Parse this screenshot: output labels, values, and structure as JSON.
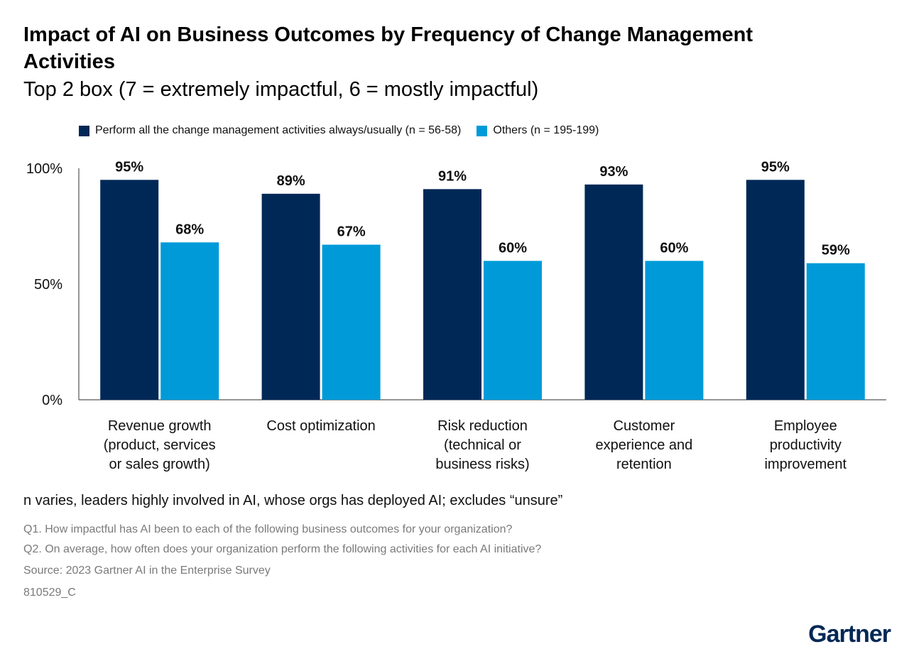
{
  "title": "Impact of AI on Business Outcomes by Frequency of Change Management Activities",
  "subtitle": "Top 2 box (7 = extremely impactful, 6 = mostly impactful)",
  "chart_data": {
    "type": "bar",
    "categories": [
      [
        "Revenue growth",
        "(product, services",
        "or sales growth)"
      ],
      [
        "Cost optimization"
      ],
      [
        "Risk reduction",
        "(technical or",
        "business risks)"
      ],
      [
        "Customer",
        "experience and",
        "retention"
      ],
      [
        "Employee",
        "productivity",
        "improvement"
      ]
    ],
    "series": [
      {
        "name": "Perform all the change management activities always/usually (n = 56-58)",
        "color": "#002856",
        "values": [
          95,
          89,
          91,
          93,
          95
        ]
      },
      {
        "name": "Others (n = 195-199)",
        "color": "#009ad9",
        "values": [
          68,
          67,
          60,
          60,
          59
        ]
      }
    ],
    "ylim": [
      0,
      100
    ],
    "yticks": [
      "0%",
      "50%",
      "100%"
    ],
    "ytick_values": [
      0,
      50,
      100
    ],
    "value_suffix": "%",
    "legend_position": "top-left",
    "grid": false
  },
  "footnote": "n varies, leaders highly involved in AI, whose orgs has deployed AI; excludes “unsure”",
  "questions": [
    "Q1. How impactful has AI been to each of the following business outcomes for your organization?",
    "Q2. On average, how often does your organization perform the following activities for each AI initiative?"
  ],
  "source": "Source: 2023 Gartner AI in the Enterprise Survey",
  "figure_id": "810529_C",
  "brand": "Gartner"
}
